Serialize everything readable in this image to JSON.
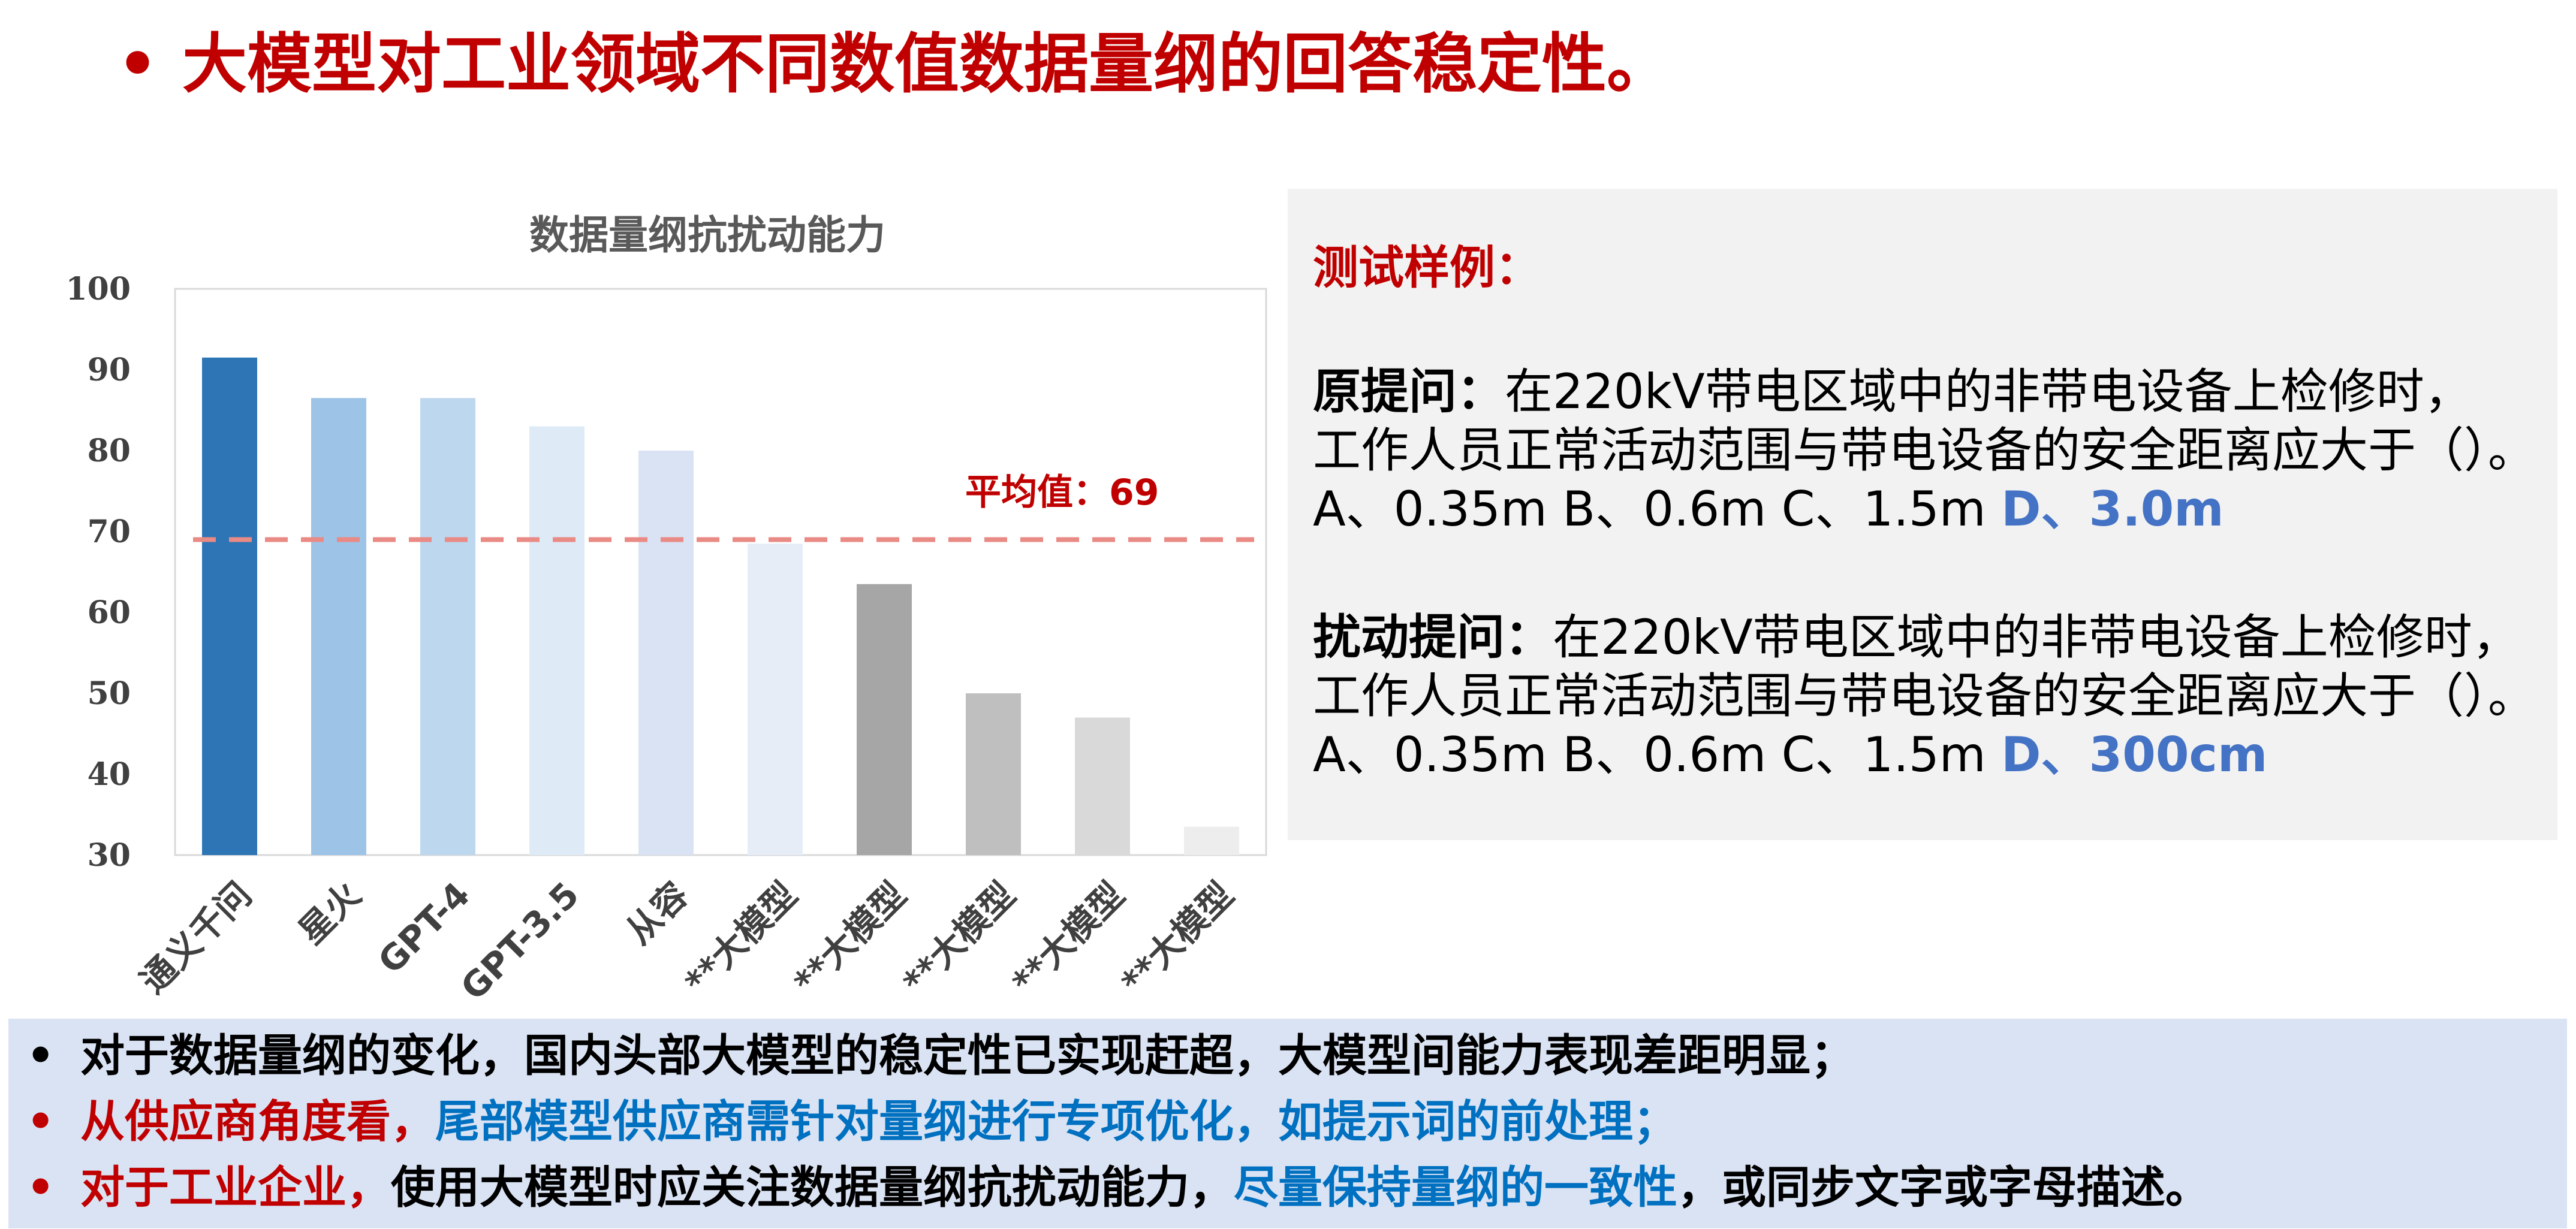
{
  "page": {
    "bullet": "•",
    "title": "大模型对工业领域不同数值数据量纲的回答稳定性。"
  },
  "chart_data": {
    "type": "bar",
    "title": "数据量纲抗扰动能力",
    "categories": [
      "通义千问",
      "星火",
      "GPT-4",
      "GPT-3.5",
      "从容",
      "**大模型",
      "**大模型",
      "**大模型",
      "**大模型",
      "**大模型"
    ],
    "values": [
      91.5,
      86.5,
      86.5,
      83,
      80,
      68.5,
      63.5,
      50,
      47,
      33.5
    ],
    "colors": [
      "#2e75b6",
      "#9dc3e6",
      "#bdd7ee",
      "#deebf7",
      "#dae3f3",
      "#e7edf7",
      "#a6a6a6",
      "#bfbfbf",
      "#d9d9d9",
      "#ededed"
    ],
    "ylim": [
      30,
      100
    ],
    "yticks": [
      "30",
      "40",
      "50",
      "60",
      "70",
      "80",
      "90",
      "100"
    ],
    "average": 69,
    "average_label": "平均值：69",
    "average_color": "#e98a84"
  },
  "sample": {
    "title": "测试样例：",
    "original": {
      "label": "原提问：",
      "line1": "在220kV带电区域中的非带电设备上检修时，",
      "line2": "工作人员正常活动范围与带电设备的安全距离应大于（）。",
      "options": "A、0.35m B、0.6m C、1.5m ",
      "answer": "D、3.0m"
    },
    "perturbed": {
      "label": "扰动提问：",
      "line1": "在220kV带电区域中的非带电设备上检修时，",
      "line2": "工作人员正常活动范围与带电设备的安全距离应大于（）。",
      "options": "A、0.35m B、0.6m C、1.5m ",
      "answer": "D、300cm"
    }
  },
  "summary": {
    "bullet": "•",
    "line1": "对于数据量纲的变化，国内头部大模型的稳定性已实现赶超，大模型间能力表现差距明显；",
    "line2_a": "从供应商角度看，",
    "line2_b": "尾部模型供应商需针对量纲进行专项优化，如提示词的前处理；",
    "line3_a": "对于工业企业，",
    "line3_b": "使用大模型时应关注数据量纲抗扰动能力，",
    "line3_c": "尽量保持量纲的一致性",
    "line3_d": "，或同步文字或字母描述。"
  }
}
